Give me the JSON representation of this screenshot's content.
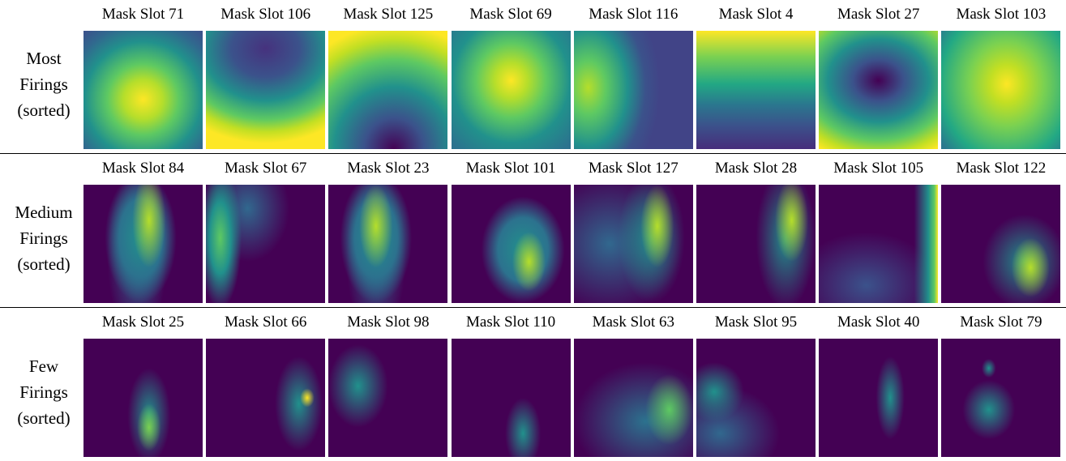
{
  "rows": [
    {
      "label": [
        "Most",
        "Firings",
        "(sorted)"
      ],
      "slots": [
        "Mask Slot 71",
        "Mask Slot 106",
        "Mask Slot 125",
        "Mask Slot 69",
        "Mask Slot 116",
        "Mask Slot 4",
        "Mask Slot 27",
        "Mask Slot 103"
      ]
    },
    {
      "label": [
        "Medium",
        "Firings",
        "(sorted)"
      ],
      "slots": [
        "Mask Slot 84",
        "Mask Slot 67",
        "Mask Slot 23",
        "Mask Slot 101",
        "Mask Slot 127",
        "Mask Slot 28",
        "Mask Slot 105",
        "Mask Slot 122"
      ]
    },
    {
      "label": [
        "Few",
        "Firings",
        "(sorted)"
      ],
      "slots": [
        "Mask Slot 25",
        "Mask Slot 66",
        "Mask Slot 98",
        "Mask Slot 110",
        "Mask Slot 63",
        "Mask Slot 95",
        "Mask Slot 40",
        "Mask Slot 79"
      ]
    }
  ]
}
